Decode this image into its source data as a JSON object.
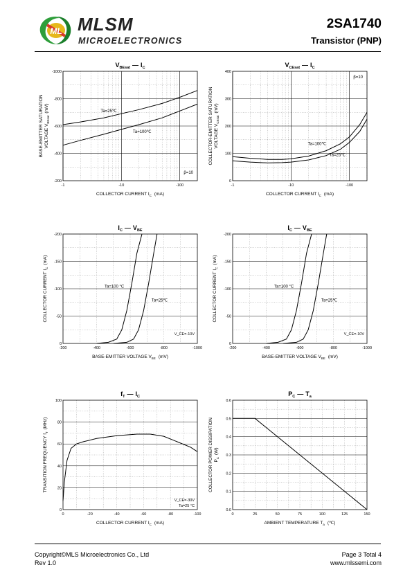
{
  "header": {
    "brand": "MLSM",
    "brand_sub": "MICROELECTRONICS",
    "part_number": "2SA1740",
    "device_type": "Transistor  (PNP)",
    "logo_text": "ML"
  },
  "footer": {
    "copyright": "Copyright©MLS Microelectronics Co., Ltd",
    "rev": "Rev 1.0",
    "page": "Page 3 Total 4",
    "website": "www.mlssemi.com"
  },
  "chart_data": [
    {
      "id": "c1",
      "type": "line",
      "title_parts": [
        "V",
        "BEsat",
        "—",
        "I",
        "C"
      ],
      "ylabel_lines": [
        "BASE-EMITTER SATURATION",
        "VOLTAGE  V",
        "BEsat",
        "(mV)"
      ],
      "xlabel": "COLLECTOR CURRENT   I",
      "xlabel_sub": "C",
      "xlabel_unit": "(mA)",
      "xscale": "log",
      "xlim": [
        -1,
        -200
      ],
      "xticks": [
        "-1",
        "-10",
        "-100"
      ],
      "ylim": [
        -200,
        -1000
      ],
      "yticks": [
        "-200",
        "-400",
        "-600",
        "-800",
        "-1000"
      ],
      "annotation": "β=10",
      "series": [
        {
          "name": "Ta=25℃",
          "x": [
            -1,
            -2,
            -5,
            -10,
            -20,
            -50,
            -100,
            -200
          ],
          "y": [
            -610,
            -630,
            -660,
            -690,
            -720,
            -765,
            -810,
            -860
          ]
        },
        {
          "name": "Ta=100℃",
          "x": [
            -1,
            -2,
            -5,
            -10,
            -20,
            -50,
            -100,
            -200
          ],
          "y": [
            -460,
            -495,
            -540,
            -575,
            -610,
            -660,
            -710,
            -760
          ]
        }
      ]
    },
    {
      "id": "c2",
      "type": "line",
      "title_parts": [
        "V",
        "CEsat",
        "—",
        "I",
        "C"
      ],
      "ylabel_lines": [
        "COLLECTOR-EMITTER SATURATION",
        "VOLTAGE  V",
        "CEsat",
        "(mV)"
      ],
      "xlabel": "COLLECTOR CURRENT   I",
      "xlabel_sub": "C",
      "xlabel_unit": "(mA)",
      "xscale": "log",
      "xlim": [
        -1,
        -200
      ],
      "xticks": [
        "-1",
        "-10",
        "-100"
      ],
      "ylim": [
        0,
        400
      ],
      "yticks": [
        "0",
        "100",
        "200",
        "300",
        "400"
      ],
      "annotation": "β=10",
      "series": [
        {
          "name": "Ta=100℃",
          "x": [
            -1,
            -2,
            -4,
            -7,
            -10,
            -20,
            -40,
            -70,
            -100,
            -150,
            -200
          ],
          "y": [
            88,
            82,
            78,
            78,
            80,
            90,
            110,
            135,
            160,
            205,
            250
          ]
        },
        {
          "name": "Ta=25℃",
          "x": [
            -1,
            -2,
            -4,
            -7,
            -10,
            -20,
            -40,
            -70,
            -100,
            -150,
            -200
          ],
          "y": [
            73,
            68,
            65,
            66,
            68,
            76,
            92,
            115,
            140,
            180,
            225
          ]
        }
      ]
    },
    {
      "id": "c3",
      "type": "line",
      "title_parts": [
        "I",
        "C",
        "—",
        "V",
        "BE"
      ],
      "ylabel_lines": [
        "COLLECTOR CURRENT   I",
        "C",
        "(mA)"
      ],
      "xlabel": "BASE-EMITTER VOLTAGE   V",
      "xlabel_sub": "BE",
      "xlabel_unit": "(mV)",
      "xscale": "linear",
      "xlim": [
        -200,
        -1000
      ],
      "xticks": [
        "-200",
        "-400",
        "-600",
        "-800",
        "-1000"
      ],
      "ylim": [
        0,
        -200
      ],
      "yticks": [
        "0",
        "-50",
        "-100",
        "-150",
        "-200"
      ],
      "annotation": "V_CE=-10V",
      "series": [
        {
          "name": "Ta=100 °C",
          "x": [
            -400,
            -470,
            -520,
            -550,
            -580,
            -610,
            -640,
            -670
          ],
          "y": [
            0,
            -2,
            -8,
            -25,
            -60,
            -110,
            -165,
            -200
          ]
        },
        {
          "name": "Ta=25℃",
          "x": [
            -500,
            -580,
            -620,
            -650,
            -680,
            -710,
            -740,
            -760
          ],
          "y": [
            0,
            -2,
            -8,
            -25,
            -60,
            -110,
            -165,
            -200
          ]
        }
      ]
    },
    {
      "id": "c4",
      "type": "line",
      "title_parts": [
        "I",
        "C",
        "—",
        "V",
        "BE"
      ],
      "ylabel_lines": [
        "COLLECTOR CURRENT   I",
        "C",
        "(mA)"
      ],
      "xlabel": "BASE-EMITTER VOLTAGE   V",
      "xlabel_sub": "BE",
      "xlabel_unit": "(mV)",
      "xscale": "linear",
      "xlim": [
        -200,
        -1000
      ],
      "xticks": [
        "-200",
        "-400",
        "-600",
        "-800",
        "-1000"
      ],
      "ylim": [
        0,
        -200
      ],
      "yticks": [
        "0",
        "-50",
        "-100",
        "-150",
        "-200"
      ],
      "annotation": "V_CE=-10V",
      "series": [
        {
          "name": "Ta=100 °C",
          "x": [
            -400,
            -470,
            -520,
            -550,
            -580,
            -610,
            -640,
            -670
          ],
          "y": [
            0,
            -2,
            -8,
            -25,
            -60,
            -110,
            -165,
            -200
          ]
        },
        {
          "name": "Ta=25℃",
          "x": [
            -500,
            -580,
            -620,
            -650,
            -680,
            -710,
            -740,
            -760
          ],
          "y": [
            0,
            -2,
            -8,
            -25,
            -60,
            -110,
            -165,
            -200
          ]
        }
      ]
    },
    {
      "id": "c5",
      "type": "line",
      "title_parts": [
        "f",
        "T",
        "—",
        "I",
        "C"
      ],
      "ylabel_lines": [
        "TRANSITION FREQUENCY   f",
        "T",
        "(MHz)"
      ],
      "xlabel": "COLLECTOR CURRENT   I",
      "xlabel_sub": "C",
      "xlabel_unit": "(mA)",
      "xscale": "linear",
      "xlim": [
        0,
        -100
      ],
      "xticks": [
        "0",
        "-20",
        "-40",
        "-60",
        "-80",
        "-100"
      ],
      "ylim": [
        0,
        100
      ],
      "yticks": [
        "0",
        "20",
        "40",
        "60",
        "80",
        "100"
      ],
      "annotation": "V_CE=-30V  Ta=25 °C",
      "series": [
        {
          "name": "",
          "x": [
            0,
            -1,
            -3,
            -6,
            -10,
            -15,
            -25,
            -40,
            -55,
            -65,
            -75,
            -85,
            -95,
            -100
          ],
          "y": [
            8,
            25,
            45,
            56,
            60,
            62,
            65,
            67.5,
            69,
            69,
            67,
            62,
            57,
            53
          ]
        }
      ]
    },
    {
      "id": "c6",
      "type": "line",
      "title_parts": [
        "P",
        "C",
        "—",
        "T",
        "a"
      ],
      "ylabel_lines": [
        "COLLECTOR POWER DISSIPATION",
        "P",
        "C",
        "(W)"
      ],
      "xlabel": "AMBIENT TEMPERATURE   T",
      "xlabel_sub": "a",
      "xlabel_unit": "(℃)",
      "xscale": "linear",
      "xlim": [
        0,
        150
      ],
      "xticks": [
        "0",
        "25",
        "50",
        "75",
        "100",
        "125",
        "150"
      ],
      "ylim": [
        0,
        0.6
      ],
      "yticks": [
        "0.0",
        "0.1",
        "0.2",
        "0.3",
        "0.4",
        "0.5",
        "0.6"
      ],
      "annotation": "",
      "series": [
        {
          "name": "",
          "x": [
            0,
            25,
            150
          ],
          "y": [
            0.5,
            0.5,
            0
          ]
        }
      ]
    }
  ]
}
